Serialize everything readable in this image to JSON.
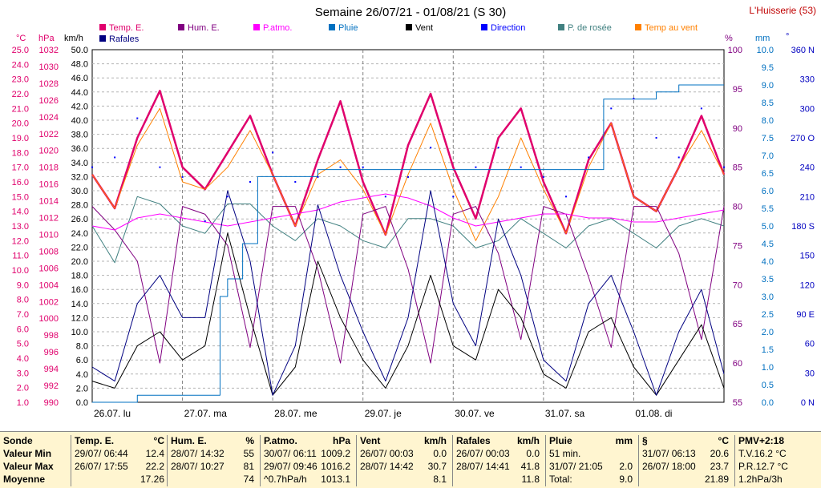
{
  "chart_data": {
    "type": "line",
    "title": "Semaine 26/07/21 - 01/08/21 (S 30)",
    "station": "L'Huisserie (53)",
    "x_days": [
      "26.07. lu",
      "27.07. ma",
      "28.07. me",
      "29.07. je",
      "30.07. ve",
      "31.07. sa",
      "01.08. di"
    ],
    "axes": {
      "temp_c": {
        "label": "°C",
        "range": [
          1.0,
          25.0
        ],
        "color": "#e0006c"
      },
      "pressure_hpa": {
        "label": "hPa",
        "range": [
          990,
          1034
        ],
        "color": "#e0006c"
      },
      "wind_kmh": {
        "label": "km/h",
        "range": [
          0,
          50
        ],
        "color": "#000000"
      },
      "humidity_pct": {
        "label": "%",
        "range": [
          55,
          100
        ],
        "color": "#800080"
      },
      "rain_mm": {
        "label": "mm",
        "range": [
          0,
          10
        ],
        "color": "#0070c0"
      },
      "direction_deg": {
        "label": "°",
        "range": [
          0,
          360
        ],
        "color": "#0000c0"
      }
    },
    "axis_ticks": {
      "temp": [
        "25.0",
        "24.0",
        "23.0",
        "22.0",
        "21.0",
        "20.0",
        "19.0",
        "18.0",
        "17.0",
        "16.0",
        "15.0",
        "14.0",
        "13.0",
        "12.0",
        "11.0",
        "10.0",
        "9.0",
        "8.0",
        "7.0",
        "6.0",
        "5.0",
        "4.0",
        "3.0",
        "2.0",
        "1.0"
      ],
      "pressure": [
        "1032",
        "1030",
        "1028",
        "1026",
        "1024",
        "1022",
        "1020",
        "1018",
        "1016",
        "1014",
        "1012",
        "1010",
        "1008",
        "1006",
        "1004",
        "1002",
        "1000",
        "998",
        "996",
        "994",
        "992",
        "990"
      ],
      "wind": [
        "50.0",
        "48.0",
        "46.0",
        "44.0",
        "42.0",
        "40.0",
        "38.0",
        "36.0",
        "34.0",
        "32.0",
        "30.0",
        "28.0",
        "26.0",
        "24.0",
        "22.0",
        "20.0",
        "18.0",
        "16.0",
        "14.0",
        "12.0",
        "10.0",
        "8.0",
        "6.0",
        "4.0",
        "2.0",
        "0.0"
      ],
      "humidity": [
        "100",
        "95",
        "90",
        "85",
        "80",
        "75",
        "70",
        "65",
        "60",
        "55"
      ],
      "rain": [
        "10.0",
        "9.5",
        "9.0",
        "8.5",
        "8.0",
        "7.5",
        "7.0",
        "6.5",
        "6.0",
        "5.5",
        "5.0",
        "4.5",
        "4.0",
        "3.5",
        "3.0",
        "2.5",
        "2.0",
        "1.5",
        "1.0",
        "0.5",
        "0.0"
      ],
      "direction": [
        "360 N",
        "330",
        "300",
        "270 O",
        "240",
        "210",
        "180 S",
        "150",
        "120",
        "90 E",
        "60",
        "30",
        "0 N"
      ]
    },
    "legend": [
      {
        "name": "Temp. E.",
        "color": "#e0006c"
      },
      {
        "name": "Hum. E.",
        "color": "#800080"
      },
      {
        "name": "P.atmo.",
        "color": "#ff00ff"
      },
      {
        "name": "Pluie",
        "color": "#0070c0"
      },
      {
        "name": "Vent",
        "color": "#000000"
      },
      {
        "name": "Direction",
        "color": "#0000ff"
      },
      {
        "name": "P. de rosée",
        "color": "#408080"
      },
      {
        "name": "Temp au vent",
        "color": "#ff8000"
      },
      {
        "name": "Rafales",
        "color": "#000080"
      }
    ],
    "series": [
      {
        "name": "Temp. E.",
        "unit": "°C",
        "color": "#e0006c",
        "x_hours": [
          0,
          6,
          12,
          18,
          24,
          30,
          36,
          42,
          48,
          54,
          60,
          66,
          72,
          78,
          84,
          90,
          96,
          102,
          108,
          114,
          120,
          126,
          132,
          138,
          144,
          150,
          156,
          162,
          168
        ],
        "values": [
          16.5,
          14.2,
          19.0,
          22.2,
          17.0,
          15.5,
          18.0,
          20.5,
          16.5,
          13.0,
          17.5,
          21.5,
          16.0,
          12.4,
          18.5,
          22.0,
          17.0,
          13.5,
          19.0,
          21.0,
          16.0,
          12.5,
          17.5,
          20.0,
          15.0,
          14.0,
          17.0,
          20.5,
          16.5
        ]
      },
      {
        "name": "Temp au vent",
        "unit": "°C",
        "color": "#ff8000",
        "x_hours": [
          0,
          6,
          12,
          18,
          24,
          30,
          36,
          42,
          48,
          54,
          60,
          66,
          72,
          78,
          84,
          90,
          96,
          102,
          108,
          114,
          120,
          126,
          132,
          138,
          144,
          150,
          156,
          162,
          168
        ],
        "values": [
          16.5,
          14.2,
          18.5,
          21.0,
          16.0,
          15.5,
          17.0,
          19.5,
          16.5,
          13.0,
          16.5,
          17.5,
          15.5,
          12.4,
          16.5,
          20.0,
          15.5,
          12.0,
          15.0,
          19.0,
          15.5,
          12.5,
          17.0,
          20.0,
          15.0,
          14.0,
          17.0,
          19.5,
          16.5
        ]
      },
      {
        "name": "P. de rosée",
        "unit": "°C",
        "color": "#408080",
        "x_hours": [
          0,
          6,
          12,
          18,
          24,
          30,
          36,
          42,
          48,
          54,
          60,
          66,
          72,
          78,
          84,
          90,
          96,
          102,
          108,
          114,
          120,
          126,
          132,
          138,
          144,
          150,
          156,
          162,
          168
        ],
        "values": [
          13.0,
          10.5,
          15.0,
          14.5,
          13.0,
          12.5,
          14.5,
          14.5,
          13.0,
          12.0,
          13.5,
          13.0,
          12.0,
          11.5,
          13.5,
          13.5,
          13.0,
          11.5,
          12.0,
          13.5,
          12.5,
          11.5,
          13.0,
          13.5,
          12.5,
          11.5,
          13.0,
          13.5,
          13.0
        ]
      },
      {
        "name": "Hum. E.",
        "unit": "%",
        "color": "#800080",
        "x_hours": [
          0,
          6,
          12,
          18,
          24,
          30,
          36,
          42,
          48,
          54,
          60,
          66,
          72,
          78,
          84,
          90,
          96,
          102,
          108,
          114,
          120,
          126,
          132,
          138,
          144,
          150,
          156,
          162,
          168
        ],
        "values": [
          80,
          77,
          73,
          60,
          80,
          79,
          75,
          62,
          80,
          80,
          72,
          60,
          79,
          80,
          72,
          60,
          79,
          80,
          74,
          63,
          80,
          79,
          71,
          62,
          80,
          80,
          74,
          63,
          80
        ]
      },
      {
        "name": "P.atmo.",
        "unit": "hPa",
        "color": "#ff00ff",
        "x_hours": [
          0,
          6,
          12,
          18,
          24,
          30,
          36,
          42,
          48,
          54,
          60,
          66,
          72,
          78,
          84,
          90,
          96,
          102,
          108,
          114,
          120,
          126,
          132,
          138,
          144,
          150,
          156,
          162,
          168
        ],
        "values": [
          1012.0,
          1011.5,
          1013.0,
          1013.5,
          1013.0,
          1012.5,
          1012.0,
          1012.5,
          1013.0,
          1013.5,
          1014.0,
          1015.0,
          1015.5,
          1016.0,
          1015.5,
          1014.5,
          1013.0,
          1012.0,
          1012.5,
          1013.0,
          1013.5,
          1013.5,
          1013.0,
          1013.0,
          1012.5,
          1012.5,
          1013.0,
          1013.5,
          1014.0
        ]
      },
      {
        "name": "Vent",
        "unit": "km/h",
        "color": "#000000",
        "x_hours": [
          0,
          6,
          12,
          18,
          24,
          30,
          36,
          42,
          48,
          54,
          60,
          66,
          72,
          78,
          84,
          90,
          96,
          102,
          108,
          114,
          120,
          126,
          132,
          138,
          144,
          150,
          156,
          162,
          168
        ],
        "values": [
          3,
          2,
          8,
          10,
          6,
          8,
          24,
          12,
          1,
          5,
          20,
          12,
          6,
          2,
          8,
          18,
          8,
          6,
          16,
          12,
          4,
          2,
          10,
          12,
          5,
          1,
          6,
          11,
          2
        ]
      },
      {
        "name": "Rafales",
        "unit": "km/h",
        "color": "#000080",
        "x_hours": [
          0,
          6,
          12,
          18,
          24,
          30,
          36,
          42,
          48,
          54,
          60,
          66,
          72,
          78,
          84,
          90,
          96,
          102,
          108,
          114,
          120,
          126,
          132,
          138,
          144,
          150,
          156,
          162,
          168
        ],
        "values": [
          5,
          3,
          14,
          18,
          12,
          12,
          30,
          20,
          1,
          8,
          28,
          18,
          10,
          3,
          12,
          30,
          14,
          8,
          26,
          18,
          6,
          3,
          14,
          18,
          10,
          1,
          10,
          16,
          4
        ]
      },
      {
        "name": "Pluie",
        "unit": "mm",
        "color": "#0070c0",
        "x_hours": [
          0,
          10,
          12,
          24,
          30,
          34,
          36,
          40,
          44,
          48,
          60,
          72,
          84,
          96,
          108,
          120,
          132,
          136,
          144,
          150,
          156,
          162,
          168
        ],
        "values": [
          0.0,
          0.0,
          0.2,
          0.2,
          0.2,
          3.0,
          3.5,
          4.5,
          6.4,
          6.4,
          6.6,
          6.6,
          6.6,
          6.6,
          6.6,
          6.6,
          6.6,
          8.6,
          8.6,
          8.8,
          9.0,
          9.0,
          9.0
        ]
      },
      {
        "name": "Direction",
        "unit": "°",
        "color": "#0000ff",
        "x_hours": [
          0,
          6,
          12,
          18,
          24,
          30,
          36,
          42,
          48,
          54,
          60,
          66,
          72,
          78,
          84,
          90,
          96,
          102,
          108,
          114,
          120,
          126,
          132,
          138,
          144,
          150,
          156,
          162,
          168
        ],
        "values": [
          240,
          250,
          290,
          240,
          230,
          185,
          210,
          225,
          255,
          225,
          230,
          240,
          240,
          210,
          230,
          260,
          210,
          240,
          260,
          240,
          230,
          210,
          250,
          300,
          310,
          270,
          250,
          300,
          240
        ]
      }
    ]
  },
  "stats": {
    "header_row_labels": [
      "Sonde",
      "Valeur Min",
      "Valeur Max",
      "Moyenne"
    ],
    "columns": [
      {
        "title": "Temp. E.",
        "unit": "°C",
        "rows": [
          [
            "29/07/ 06:44",
            "12.4"
          ],
          [
            "26/07/ 17:55",
            "22.2"
          ],
          [
            "",
            "17.26"
          ]
        ]
      },
      {
        "title": "Hum. E.",
        "unit": "%",
        "rows": [
          [
            "28/07/ 14:32",
            "55"
          ],
          [
            "28/07/ 10:27",
            "81"
          ],
          [
            "",
            "74"
          ]
        ]
      },
      {
        "title": "P.atmo.",
        "unit": "hPa",
        "rows": [
          [
            "30/07/ 06:11",
            "1009.2"
          ],
          [
            "29/07/ 09:46",
            "1016.2"
          ],
          [
            "^0.7hPa/h",
            "1013.1"
          ]
        ]
      },
      {
        "title": "Vent",
        "unit": "km/h",
        "rows": [
          [
            "26/07/ 00:03",
            "0.0"
          ],
          [
            "28/07/ 14:42",
            "30.7"
          ],
          [
            "",
            "8.1"
          ]
        ]
      },
      {
        "title": "Rafales",
        "unit": "km/h",
        "rows": [
          [
            "26/07/ 00:03",
            "0.0"
          ],
          [
            "28/07/ 14:41",
            "41.8"
          ],
          [
            "",
            "11.8"
          ]
        ]
      },
      {
        "title": "Pluie",
        "unit": "mm",
        "rows": [
          [
            "51 min.",
            ""
          ],
          [
            "31/07/ 21:05",
            "2.0"
          ],
          [
            "Total:",
            "9.0"
          ]
        ]
      },
      {
        "title": "§",
        "unit": "°C",
        "rows": [
          [
            "31/07/ 06:13",
            "20.6"
          ],
          [
            "26/07/ 18:00",
            "23.7"
          ],
          [
            "",
            "21.89"
          ]
        ]
      }
    ],
    "pmv": {
      "title": "PMV+2:18",
      "lines": [
        "T.V.16.2 °C",
        "P.R.12.7 °C",
        "1.2hPa/3h"
      ]
    }
  }
}
